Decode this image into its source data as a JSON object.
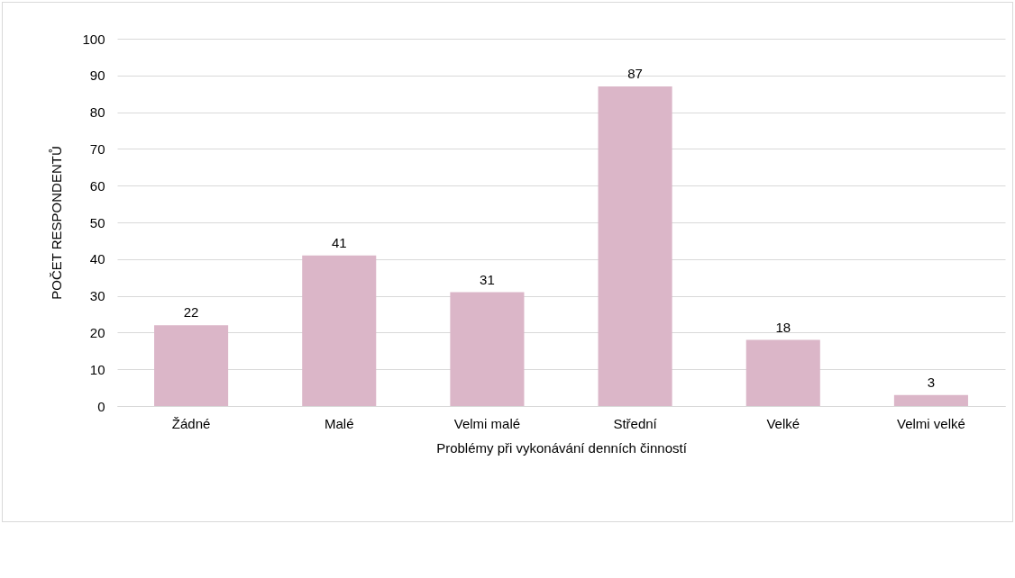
{
  "chart_data": {
    "type": "bar",
    "xlabel": "Problémy při vykonávání denních činností",
    "ylabel": "POČET RESPONDENTŮ",
    "categories": [
      "Žádné",
      "Malé",
      "Velmi malé",
      "Střední",
      "Velké",
      "Velmi velké"
    ],
    "values": [
      22,
      41,
      31,
      87,
      18,
      3
    ],
    "color": "#dbb6c8",
    "ylim": [
      0,
      100
    ],
    "yticks": [
      0,
      10,
      20,
      30,
      40,
      50,
      60,
      70,
      80,
      90,
      100
    ],
    "grid": "y",
    "data_labels": true
  }
}
